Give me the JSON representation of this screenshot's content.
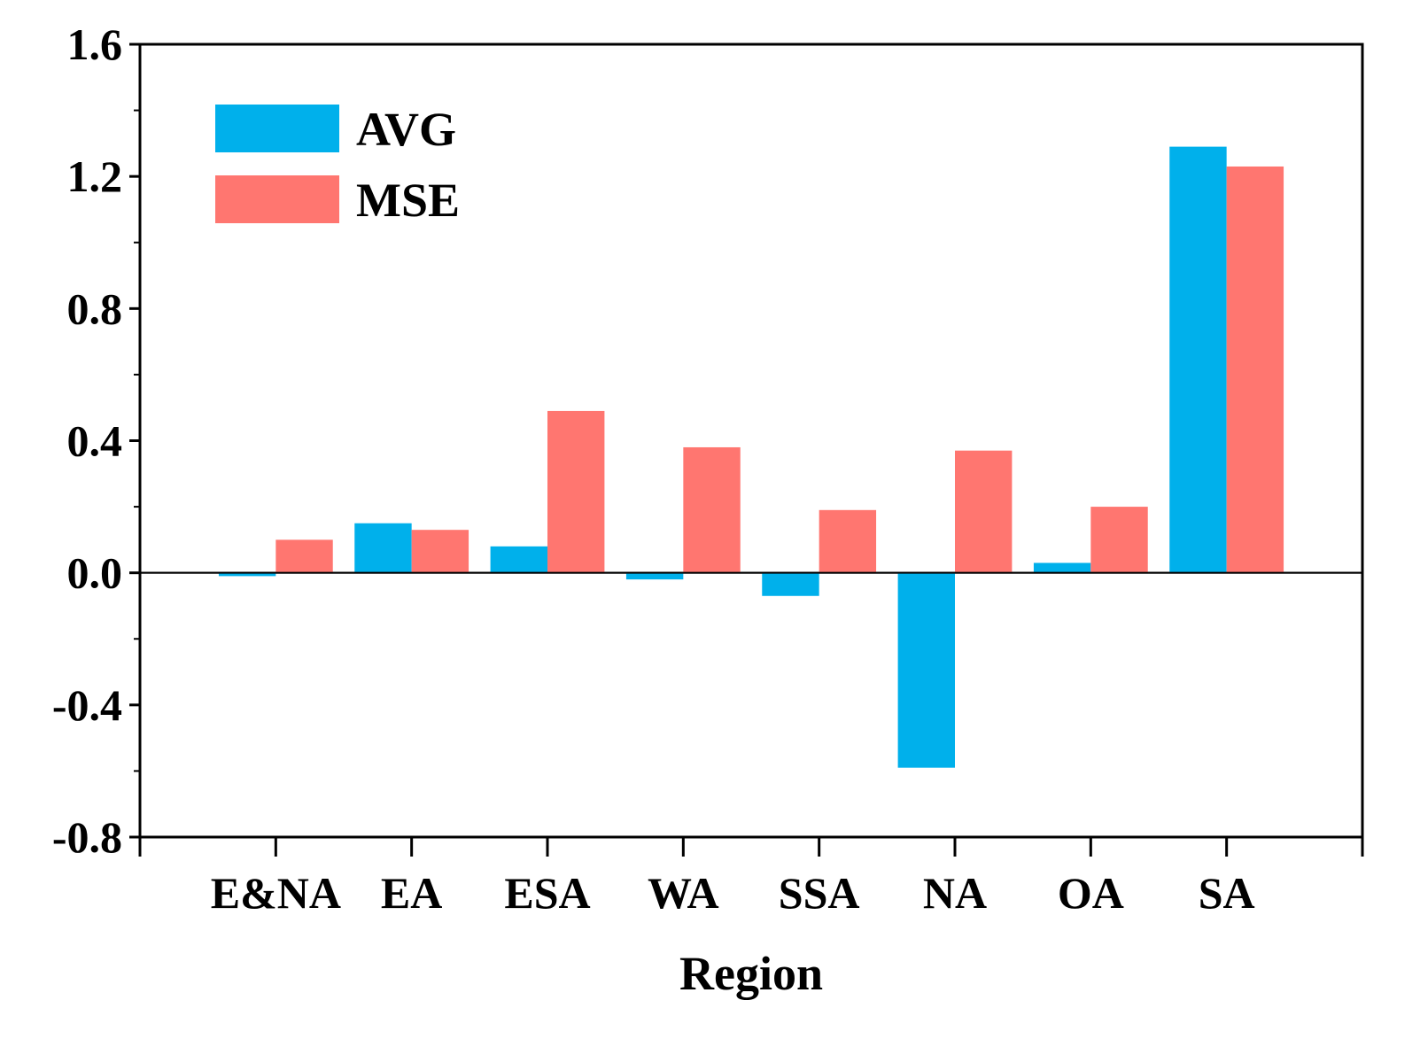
{
  "chart_data": {
    "type": "bar",
    "title": "",
    "xlabel": "Region",
    "ylabel": "",
    "categories": [
      "E&NA",
      "EA",
      "ESA",
      "WA",
      "SSA",
      "NA",
      "OA",
      "SA"
    ],
    "series": [
      {
        "name": "AVG",
        "color": "#00b0eb",
        "values": [
          -0.01,
          0.15,
          0.08,
          -0.02,
          -0.07,
          -0.59,
          0.03,
          1.29
        ]
      },
      {
        "name": "MSE",
        "color": "#ff7670",
        "values": [
          0.1,
          0.13,
          0.49,
          0.38,
          0.19,
          0.37,
          0.2,
          1.23
        ]
      }
    ],
    "ylim": [
      -0.8,
      1.6
    ],
    "yticks": [
      "-0.8",
      "-0.4",
      "0.0",
      "0.4",
      "0.8",
      "1.2",
      "1.6"
    ],
    "grid": false,
    "legend_position": "top-left",
    "zero_line": true
  }
}
